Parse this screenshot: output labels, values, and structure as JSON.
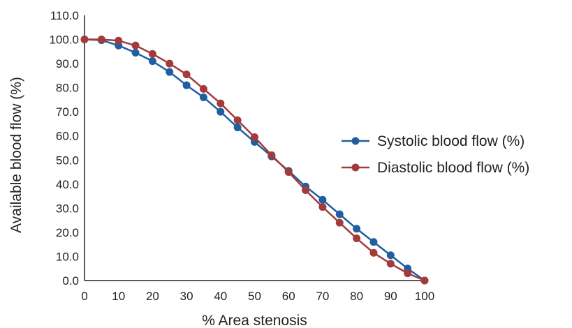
{
  "chart_data": {
    "type": "line",
    "title": "",
    "xlabel": "% Area stenosis",
    "ylabel": "Available blood flow  (%)",
    "xlim": [
      0,
      100
    ],
    "ylim": [
      0,
      110
    ],
    "x_ticks": [
      "0",
      "10",
      "20",
      "30",
      "40",
      "50",
      "60",
      "70",
      "80",
      "90",
      "100"
    ],
    "y_ticks": [
      "0.0",
      "10.0",
      "20.0",
      "30.0",
      "40.0",
      "50.0",
      "60.0",
      "70.0",
      "80.0",
      "90.0",
      "100.0",
      "110.0"
    ],
    "x": [
      0,
      5,
      10,
      15,
      20,
      25,
      30,
      35,
      40,
      45,
      50,
      55,
      60,
      65,
      70,
      75,
      80,
      85,
      90,
      95,
      100
    ],
    "series": [
      {
        "name": "Systolic blood flow (%)",
        "color": "#1f5f9f",
        "values": [
          100,
          99.7,
          97.5,
          94.5,
          91,
          86.5,
          81,
          76,
          70,
          63.5,
          57.5,
          51.5,
          45.5,
          39,
          33.5,
          27.5,
          21.5,
          16,
          10.5,
          5,
          0
        ]
      },
      {
        "name": "Diastolic blood flow (%)",
        "color": "#a33a3c",
        "values": [
          100,
          100,
          99.5,
          97.5,
          94,
          90,
          85.5,
          79.5,
          73.5,
          66.5,
          59.5,
          52,
          45,
          37.5,
          30.5,
          24,
          17.5,
          11.5,
          7,
          3,
          0
        ]
      }
    ],
    "grid": false,
    "legend_position": "right"
  }
}
